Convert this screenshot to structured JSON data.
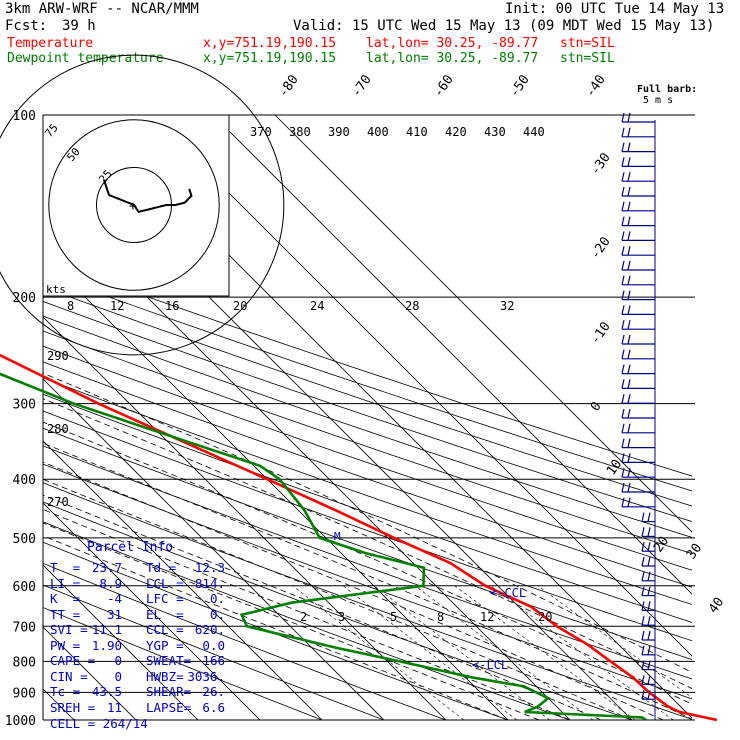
{
  "header": {
    "line1_left": "3km ARW-WRF -- NCAR/MMM",
    "line1_right": "Init: 00 UTC Tue 14 May 13",
    "fcst_label": "Fcst:",
    "fcst_value": "39 h",
    "valid": "Valid: 15 UTC Wed 15 May 13 (09 MDT Wed 15 May 13)",
    "temp_label": "Temperature",
    "dewp_label": "Dewpoint temperature",
    "xy": "x,y=751.19,190.15",
    "latlon": "lat,lon= 30.25, -89.77",
    "stn": "stn=SIL",
    "full_barb": "Full barb:",
    "full_barb_units": "5 m s",
    "kts": "kts"
  },
  "colors": {
    "temperature": "#ff0000",
    "dewpoint": "#008000",
    "wind": "#000080",
    "text": "#000000",
    "parcel": "#0000cc"
  },
  "parcel_info": {
    "title": "Parcel Info",
    "rows": [
      [
        "T  =",
        "23.7",
        "Td =",
        "12.3"
      ],
      [
        "LI =",
        "8.9",
        "LCL =",
        "814."
      ],
      [
        "K  =",
        "-4",
        "LFC =",
        "0."
      ],
      [
        "TT =",
        "31",
        "EL  =",
        "0."
      ],
      [
        "SVI =",
        "11.1",
        "CCL =",
        "620."
      ],
      [
        "PW =",
        "1.90",
        "YGP =",
        "0.0"
      ],
      [
        "CAPE =",
        "0",
        "SWEAT=",
        "166"
      ],
      [
        "CIN =",
        "0",
        "HWBZ=",
        "3036."
      ],
      [
        "Tc =",
        "43.5",
        "SHEAR=",
        "26."
      ],
      [
        "SREH =",
        "11",
        "LAPSE=",
        "6.6"
      ]
    ],
    "cell": "CELL = 264/14"
  },
  "ccl_label": "<-CCL",
  "lcl_label": "<-LCL",
  "m_label": "M",
  "chart_data": {
    "type": "line",
    "pressure_levels": [
      100,
      200,
      300,
      400,
      500,
      600,
      700,
      800,
      900,
      1000
    ],
    "isotherm_labels": [
      "-80",
      "-70",
      "-60",
      "-50",
      "-40",
      "-30",
      "-20",
      "-10",
      "0",
      "10",
      "20",
      "30",
      "40"
    ],
    "theta_labels": [
      "370",
      "380",
      "390",
      "400",
      "410",
      "420",
      "430",
      "440"
    ],
    "theta_left_labels": [
      "290",
      "280",
      "270"
    ],
    "mixing_ratio_labels": [
      "2",
      "3",
      "5",
      "8",
      "12",
      "20"
    ],
    "wind_speed_labels": [
      "8",
      "12",
      "16",
      "20",
      "24",
      "28",
      "32"
    ],
    "hodograph_ring_labels": [
      "25",
      "50",
      "75"
    ],
    "series": [
      {
        "name": "Temperature",
        "color": "#ff0000",
        "points": [
          [
            1000,
            23.7
          ],
          [
            970,
            19
          ],
          [
            950,
            18
          ],
          [
            900,
            17.2
          ],
          [
            850,
            17
          ],
          [
            800,
            16
          ],
          [
            750,
            15
          ],
          [
            700,
            13
          ],
          [
            650,
            12
          ],
          [
            600,
            8
          ],
          [
            550,
            6
          ],
          [
            500,
            1
          ],
          [
            450,
            -4
          ],
          [
            400,
            -10
          ],
          [
            350,
            -17
          ],
          [
            300,
            -25
          ],
          [
            250,
            -33
          ],
          [
            200,
            -44
          ],
          [
            175,
            -50
          ],
          [
            150,
            -57
          ],
          [
            140,
            -60
          ],
          [
            125,
            -57
          ],
          [
            110,
            -56
          ],
          [
            100,
            -55
          ]
        ]
      },
      {
        "name": "Dewpoint temperature",
        "color": "#008000",
        "points": [
          [
            1000,
            12.3
          ],
          [
            990,
            12
          ],
          [
            970,
            -6
          ],
          [
            950,
            -3
          ],
          [
            920,
            0
          ],
          [
            900,
            -1
          ],
          [
            880,
            -2
          ],
          [
            850,
            -9
          ],
          [
            800,
            -18
          ],
          [
            760,
            -26
          ],
          [
            700,
            -37
          ],
          [
            670,
            -36
          ],
          [
            640,
            -26
          ],
          [
            600,
            -2
          ],
          [
            560,
            1
          ],
          [
            530,
            -6
          ],
          [
            500,
            -11
          ],
          [
            450,
            -9
          ],
          [
            400,
            -8
          ],
          [
            380,
            -9
          ],
          [
            350,
            -16
          ],
          [
            300,
            -29
          ],
          [
            260,
            -38
          ],
          [
            220,
            -51
          ],
          [
            200,
            -58
          ],
          [
            180,
            -63
          ],
          [
            160,
            -69
          ],
          [
            140,
            -73
          ],
          [
            120,
            -75
          ],
          [
            100,
            -75
          ]
        ]
      }
    ],
    "hodograph": [
      [
        2,
        3
      ],
      [
        6,
        2
      ],
      [
        10,
        1
      ],
      [
        14,
        0
      ],
      [
        18,
        0
      ],
      [
        22,
        -1
      ],
      [
        25,
        -4
      ],
      [
        24,
        -7
      ]
    ]
  }
}
